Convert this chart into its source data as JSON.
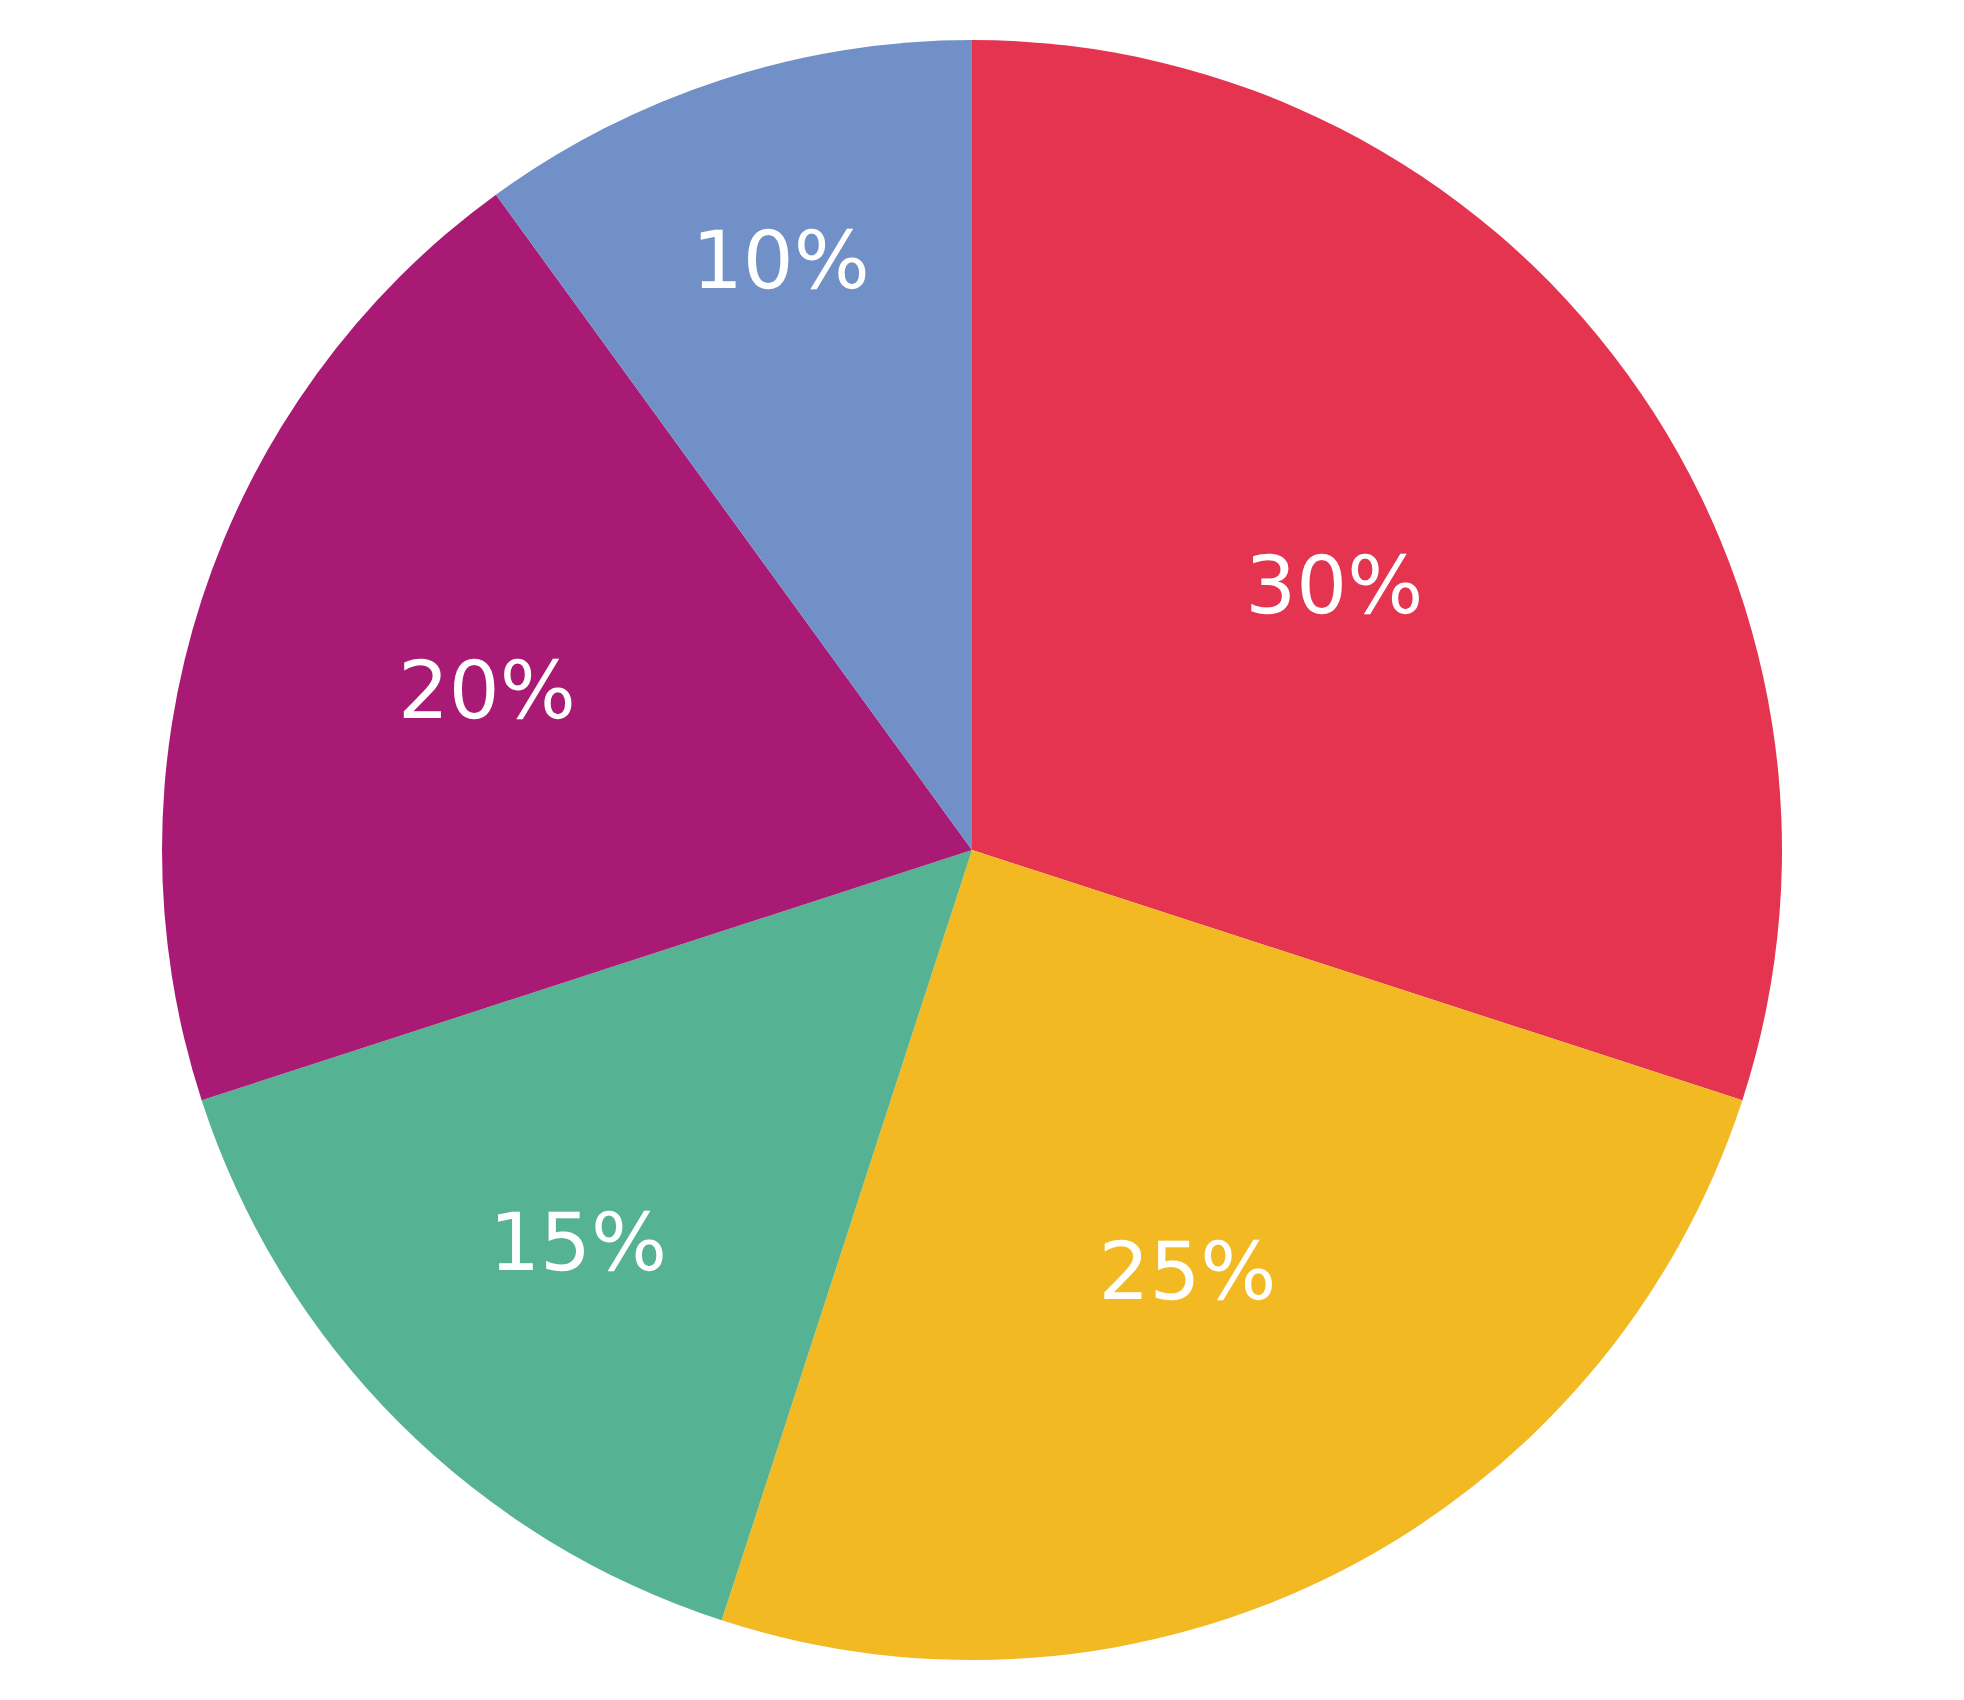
{
  "chart_data": {
    "type": "pie",
    "categories": [
      null,
      null,
      null,
      null,
      null
    ],
    "values": [
      30,
      25,
      15,
      20,
      10
    ],
    "colors": [
      "#e5344f",
      "#f3b922",
      "#55b293",
      "#a91a74",
      "#7190c7"
    ],
    "value_labels": [
      "30%",
      "25%",
      "15%",
      "20%",
      "10%"
    ],
    "legend": false
  }
}
